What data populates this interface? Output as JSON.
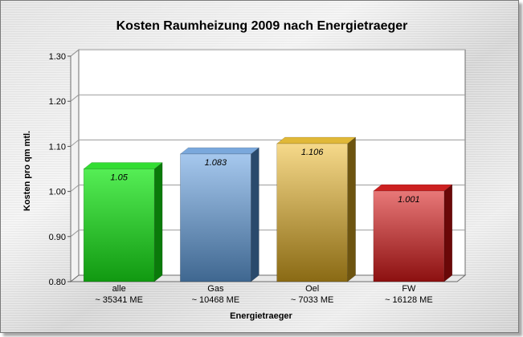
{
  "chart_data": {
    "type": "bar",
    "title": "Kosten Raumheizung 2009 nach Energietraeger",
    "xlabel": "Energietraeger",
    "ylabel": "Kosten pro qm mtl.",
    "ylim": [
      0.8,
      1.3
    ],
    "yticks": [
      "0.80",
      "0.90",
      "1.00",
      "1.10",
      "1.20",
      "1.30"
    ],
    "grid": true,
    "legend": "none",
    "categories": [
      {
        "name": "alle",
        "sub": "~ 35341 ME"
      },
      {
        "name": "Gas",
        "sub": "~ 10468 ME"
      },
      {
        "name": "Oel",
        "sub": "~ 7033 ME"
      },
      {
        "name": "FW",
        "sub": "~ 16128 ME"
      }
    ],
    "values": [
      1.05,
      1.083,
      1.106,
      1.001
    ],
    "value_labels": [
      "1.05",
      "1.083",
      "1.106",
      "1.001"
    ],
    "colors": {
      "alle": [
        "#55ee55",
        "#119911",
        "#33dd33",
        "#0a7a0a"
      ],
      "Gas": [
        "#a6c8ee",
        "#3f6790",
        "#7aa8dc",
        "#2a4a6c"
      ],
      "Oel": [
        "#f6d98a",
        "#8a6a14",
        "#e0b838",
        "#6d5410"
      ],
      "FW": [
        "#e87878",
        "#8c1010",
        "#cc2020",
        "#6a0808"
      ]
    }
  }
}
